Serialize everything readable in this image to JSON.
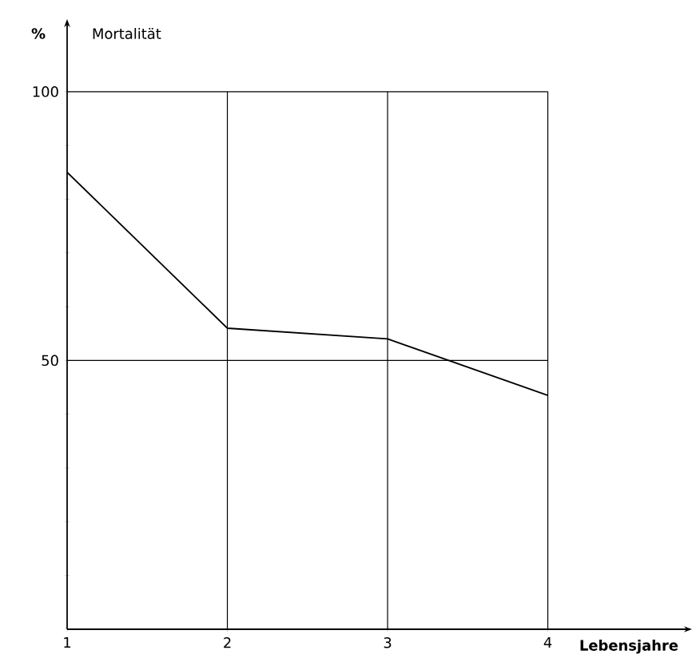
{
  "chart_data": {
    "type": "line",
    "title": "Mortalität",
    "ylabel": "%",
    "xlabel": "Lebensjahre",
    "x": [
      1,
      2,
      3,
      4
    ],
    "series": [
      {
        "color": "#000000",
        "values": [
          85,
          56,
          54,
          43.5
        ]
      }
    ],
    "xlim": [
      1,
      4.85
    ],
    "ylim": [
      0,
      112
    ],
    "xticks": [
      1,
      2,
      3,
      4
    ],
    "yticks": [
      {
        "value": 10,
        "label": null
      },
      {
        "value": 20,
        "label": null
      },
      {
        "value": 30,
        "label": null
      },
      {
        "value": 40,
        "label": null
      },
      50,
      {
        "value": 60,
        "label": null
      },
      {
        "value": 70,
        "label": null
      },
      {
        "value": 80,
        "label": null
      },
      {
        "value": 90,
        "label": null
      },
      100
    ],
    "grid": true,
    "marker": "none",
    "line_style": "solid"
  }
}
